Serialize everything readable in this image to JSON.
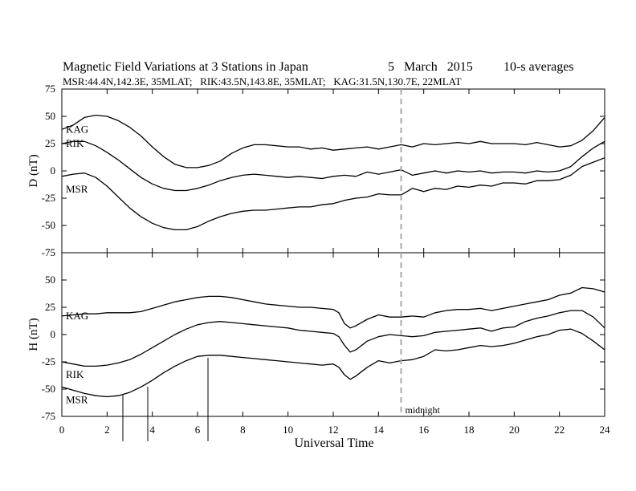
{
  "chart_data": {
    "type": "line",
    "title": "Magnetic Field Variations at 3 Stations in Japan",
    "date_text": "5   March   2015",
    "averaging": "10-s averages",
    "subtitle": "MSR:44.4N,142.3E, 35MLAT;   RIK:43.5N,143.8E, 35MLAT;   KAG:31.5N,130.7E, 22MLAT",
    "xlabel": "Universal Time",
    "xlim": [
      0,
      24
    ],
    "xticks": [
      0,
      2,
      4,
      6,
      8,
      10,
      12,
      14,
      16,
      18,
      20,
      22,
      24
    ],
    "annotation": {
      "x": 15,
      "text": "midnight",
      "style": "dashed"
    },
    "panels": [
      {
        "ylabel": "D (nT)",
        "ylim": [
          -75,
          75
        ],
        "yticks": [
          -75,
          -50,
          -25,
          0,
          25,
          50,
          75
        ],
        "series": [
          {
            "name": "KAG",
            "x": [
              0,
              0.5,
              1.0,
              1.5,
              2.0,
              2.5,
              3.0,
              3.5,
              4.0,
              4.5,
              5.0,
              5.5,
              6.0,
              6.5,
              7.0,
              7.5,
              8.0,
              8.5,
              9.0,
              9.5,
              10,
              10.5,
              11,
              11.5,
              12,
              12.5,
              13,
              13.5,
              14,
              14.5,
              15,
              15.5,
              16,
              16.5,
              17,
              17.5,
              18,
              18.5,
              19,
              19.5,
              20,
              20.5,
              21,
              21.5,
              22,
              22.5,
              23,
              23.5,
              24
            ],
            "values": [
              38,
              42,
              49,
              51,
              50,
              46,
              40,
              32,
              22,
              13,
              6,
              3,
              3,
              5,
              9,
              16,
              21,
              24,
              24,
              23,
              22,
              22,
              20,
              21,
              19,
              20,
              21,
              22,
              20,
              22,
              24,
              22,
              25,
              24,
              25,
              26,
              25,
              27,
              25,
              25,
              25,
              24,
              26,
              24,
              22,
              23,
              28,
              37,
              49
            ]
          },
          {
            "name": "RIK",
            "x": [
              0,
              0.5,
              1.0,
              1.5,
              2.0,
              2.5,
              3.0,
              3.5,
              4.0,
              4.5,
              5.0,
              5.5,
              6.0,
              6.5,
              7.0,
              7.5,
              8.0,
              8.5,
              9.0,
              9.5,
              10,
              10.5,
              11,
              11.5,
              12,
              12.5,
              13,
              13.5,
              14,
              14.5,
              15,
              15.5,
              16,
              16.5,
              17,
              17.5,
              18,
              18.5,
              19,
              19.5,
              20,
              20.5,
              21,
              21.5,
              22,
              22.5,
              23,
              23.5,
              24
            ],
            "values": [
              25,
              27,
              27,
              23,
              17,
              10,
              2,
              -6,
              -12,
              -16,
              -18,
              -18,
              -16,
              -13,
              -9,
              -6,
              -4,
              -3,
              -4,
              -5,
              -6,
              -5,
              -6,
              -7,
              -5,
              -4,
              -5,
              -1,
              -3,
              -1,
              1,
              -4,
              -2,
              0,
              -2,
              0,
              -1,
              0,
              -2,
              -1,
              -1,
              -2,
              0,
              -1,
              0,
              4,
              13,
              21,
              27
            ]
          },
          {
            "name": "MSR",
            "x": [
              0,
              0.5,
              1.0,
              1.5,
              2.0,
              2.5,
              3.0,
              3.5,
              4.0,
              4.5,
              5.0,
              5.5,
              6.0,
              6.5,
              7.0,
              7.5,
              8.0,
              8.5,
              9.0,
              9.5,
              10,
              10.5,
              11,
              11.5,
              12,
              12.5,
              13,
              13.5,
              14,
              14.5,
              15,
              15.5,
              16,
              16.5,
              17,
              17.5,
              18,
              18.5,
              19,
              19.5,
              20,
              20.5,
              21,
              21.5,
              22,
              22.5,
              23,
              23.5,
              24
            ],
            "values": [
              -5,
              -3,
              -2,
              -6,
              -14,
              -24,
              -34,
              -42,
              -48,
              -52,
              -54,
              -54,
              -51,
              -46,
              -42,
              -39,
              -37,
              -36,
              -36,
              -35,
              -34,
              -33,
              -33,
              -31,
              -30,
              -27,
              -25,
              -24,
              -21,
              -22,
              -22,
              -16,
              -19,
              -16,
              -17,
              -14,
              -15,
              -13,
              -14,
              -11,
              -11,
              -12,
              -9,
              -9,
              -8,
              -4,
              4,
              8,
              12
            ]
          }
        ]
      },
      {
        "ylabel": "H (nT)",
        "ylim": [
          -75,
          75
        ],
        "yticks": [
          -75,
          -50,
          -25,
          0,
          25,
          50
        ],
        "series": [
          {
            "name": "KAG",
            "x": [
              0,
              0.5,
              1.0,
              1.5,
              2.0,
              2.5,
              3.0,
              3.5,
              4.0,
              4.5,
              5.0,
              5.5,
              6.0,
              6.5,
              7.0,
              7.5,
              8.0,
              8.5,
              9.0,
              9.5,
              10,
              10.5,
              11,
              11.5,
              12,
              12.25,
              12.5,
              12.75,
              13,
              13.5,
              14,
              14.5,
              15,
              15.5,
              16,
              16.5,
              17,
              17.5,
              18,
              18.5,
              19,
              19.5,
              20,
              20.5,
              21,
              21.5,
              22,
              22.5,
              23,
              23.5,
              24
            ],
            "values": [
              17,
              18,
              19,
              19,
              20,
              20,
              20,
              21,
              24,
              27,
              30,
              32,
              34,
              35,
              35,
              34,
              32,
              30,
              28,
              27,
              26,
              25,
              25,
              24,
              23,
              20,
              10,
              6,
              8,
              14,
              18,
              16,
              16,
              17,
              16,
              20,
              22,
              23,
              23,
              24,
              22,
              24,
              26,
              28,
              30,
              32,
              36,
              38,
              43,
              42,
              39
            ]
          },
          {
            "name": "RIK",
            "x": [
              0,
              0.5,
              1.0,
              1.5,
              2.0,
              2.5,
              3.0,
              3.5,
              4.0,
              4.5,
              5.0,
              5.5,
              6.0,
              6.5,
              7.0,
              7.5,
              8.0,
              8.5,
              9.0,
              9.5,
              10,
              10.5,
              11,
              11.5,
              12,
              12.25,
              12.5,
              12.75,
              13,
              13.5,
              14,
              14.5,
              15,
              15.5,
              16,
              16.5,
              17,
              17.5,
              18,
              18.5,
              19,
              19.5,
              20,
              20.5,
              21,
              21.5,
              22,
              22.5,
              23,
              23.5,
              24
            ],
            "values": [
              -25,
              -27,
              -29,
              -29,
              -28,
              -26,
              -23,
              -18,
              -12,
              -6,
              0,
              5,
              9,
              11,
              12,
              11,
              10,
              9,
              8,
              7,
              6,
              4,
              3,
              2,
              1,
              -2,
              -10,
              -16,
              -14,
              -6,
              -2,
              0,
              -1,
              -2,
              -1,
              2,
              3,
              4,
              5,
              6,
              3,
              6,
              7,
              12,
              15,
              17,
              20,
              22,
              22,
              16,
              6
            ]
          },
          {
            "name": "MSR",
            "x": [
              0,
              0.5,
              1.0,
              1.5,
              2.0,
              2.5,
              3.0,
              3.5,
              4.0,
              4.5,
              5.0,
              5.5,
              6.0,
              6.5,
              7.0,
              7.5,
              8.0,
              8.5,
              9.0,
              9.5,
              10,
              10.5,
              11,
              11.5,
              12,
              12.25,
              12.5,
              12.75,
              13,
              13.5,
              14,
              14.5,
              15,
              15.5,
              16,
              16.5,
              17,
              17.5,
              18,
              18.5,
              19,
              19.5,
              20,
              20.5,
              21,
              21.5,
              22,
              22.5,
              23,
              23.5,
              24
            ],
            "values": [
              -48,
              -51,
              -54,
              -56,
              -57,
              -56,
              -53,
              -48,
              -42,
              -35,
              -29,
              -24,
              -20,
              -19,
              -19,
              -20,
              -21,
              -22,
              -23,
              -24,
              -25,
              -26,
              -27,
              -28,
              -27,
              -30,
              -37,
              -41,
              -38,
              -30,
              -24,
              -26,
              -24,
              -23,
              -20,
              -14,
              -15,
              -14,
              -12,
              -10,
              -11,
              -10,
              -8,
              -5,
              -2,
              0,
              4,
              5,
              1,
              -6,
              -14
            ]
          }
        ]
      }
    ]
  }
}
